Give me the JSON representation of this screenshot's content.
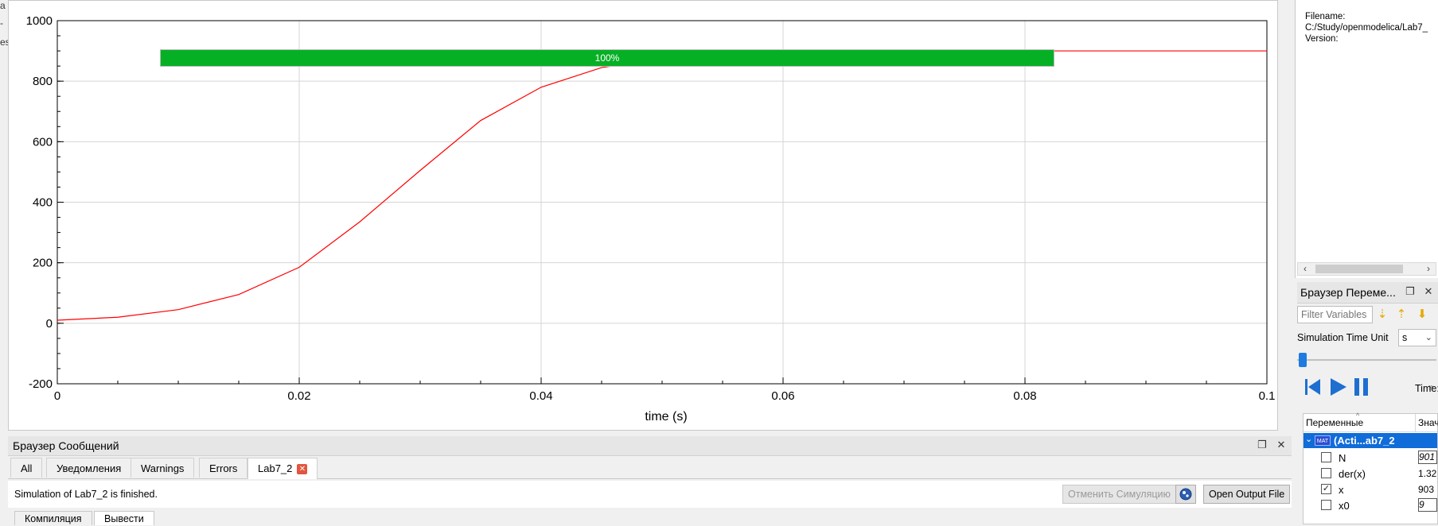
{
  "left_edge": {
    "fragments": [
      "a",
      "-",
      "es"
    ]
  },
  "plot": {
    "xlabel": "time (s)",
    "curve_color": "#ff0000",
    "grid_color": "#d4d4d4"
  },
  "chart_data": {
    "type": "line",
    "title": "",
    "xlabel": "time (s)",
    "ylabel": "",
    "xlim": [
      0,
      0.1
    ],
    "ylim": [
      -200,
      1000
    ],
    "x_ticks": [
      "0",
      "0.02",
      "0.04",
      "0.06",
      "0.08",
      "0.1"
    ],
    "y_ticks": [
      "-200",
      "0",
      "200",
      "400",
      "600",
      "800",
      "1000"
    ],
    "grid": true,
    "series": [
      {
        "color": "#ff0000",
        "x": [
          0,
          0.005,
          0.01,
          0.015,
          0.02,
          0.025,
          0.03,
          0.035,
          0.04,
          0.045,
          0.05,
          0.055,
          0.06,
          0.065,
          0.07,
          0.08,
          0.09,
          0.1
        ],
        "y": [
          10,
          20,
          45,
          95,
          185,
          335,
          505,
          670,
          780,
          845,
          875,
          890,
          896,
          899,
          900,
          900,
          900,
          900
        ]
      }
    ]
  },
  "message_browser": {
    "title": "Браузер Сообщений",
    "tabs": [
      "All",
      "Уведомления",
      "Warnings",
      "Errors",
      "Lab7_2"
    ],
    "status": "Simulation of Lab7_2 is finished.",
    "progress": 100,
    "progress_text": "100%",
    "cancel_label": "Отменить Симуляцию",
    "open_output_label": "Open Output File",
    "bottom_tabs": [
      "Компиляция",
      "Вывести"
    ]
  },
  "info_panel": {
    "filename_label": "Filename:",
    "filename_value": "C:/Study/openmodelica/Lab7_",
    "version_label": "Version:"
  },
  "variables_browser": {
    "title": "Браузер Переме...",
    "filter_placeholder": "Filter Variables",
    "time_unit_label": "Simulation Time Unit",
    "time_unit_value": "s",
    "time_label": "Time:",
    "col_variables": "Переменные",
    "col_value": "Знач",
    "root_label": "(Acti...ab7_2",
    "mat_badge": "MAT",
    "rows": [
      {
        "name": "N",
        "value": "901",
        "checked": false,
        "boxed": true
      },
      {
        "name": "der(x)",
        "value": "1.32",
        "checked": false,
        "boxed": false
      },
      {
        "name": "x",
        "value": "903",
        "checked": true,
        "boxed": false
      },
      {
        "name": "x0",
        "value": "9",
        "checked": false,
        "boxed": true
      }
    ]
  }
}
